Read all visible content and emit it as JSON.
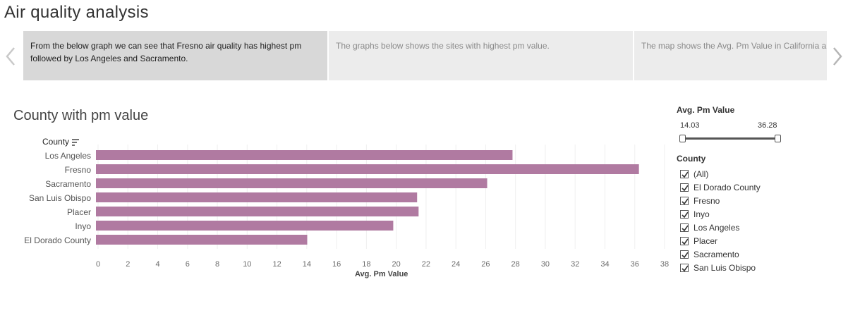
{
  "story": {
    "title": "Air quality analysis",
    "points": [
      {
        "text": "From the below graph we can see that Fresno air quality has highest pm followed by Los Angeles and Sacramento.",
        "active": true
      },
      {
        "text": "The graphs below shows the sites with highest pm value.",
        "active": false
      },
      {
        "text": "The map shows the Avg. Pm Value in California and gives a better perspective of inpacted counties.",
        "active": false
      }
    ],
    "prev_icon": "chevron-left-icon",
    "next_icon": "chevron-right-icon"
  },
  "sheet": {
    "title": "County with pm value",
    "row_header": "County",
    "sort_icon": "sort-descending-icon"
  },
  "chart_data": {
    "type": "bar",
    "orientation": "horizontal",
    "title": "County with pm value",
    "xlabel": "Avg. Pm Value",
    "ylabel": "County",
    "categories": [
      "Los Angeles",
      "Fresno",
      "Sacramento",
      "San Luis Obispo",
      "Placer",
      "Inyo",
      "El Dorado County"
    ],
    "values": [
      27.8,
      36.28,
      26.1,
      21.4,
      21.5,
      19.8,
      14.03
    ],
    "xlim": [
      0,
      38
    ],
    "xticks": [
      0,
      2,
      4,
      6,
      8,
      10,
      12,
      14,
      16,
      18,
      20,
      22,
      24,
      26,
      28,
      30,
      32,
      34,
      36,
      38
    ],
    "bar_color": "#b07aa1",
    "grid": true
  },
  "filters": {
    "pm_range": {
      "title": "Avg. Pm Value",
      "min": "14.03",
      "max": "36.28"
    },
    "county": {
      "title": "County",
      "items": [
        {
          "label": "(All)",
          "checked": true
        },
        {
          "label": "El Dorado County",
          "checked": true
        },
        {
          "label": "Fresno",
          "checked": true
        },
        {
          "label": "Inyo",
          "checked": true
        },
        {
          "label": "Los Angeles",
          "checked": true
        },
        {
          "label": "Placer",
          "checked": true
        },
        {
          "label": "Sacramento",
          "checked": true
        },
        {
          "label": "San Luis Obispo",
          "checked": true
        }
      ]
    }
  }
}
